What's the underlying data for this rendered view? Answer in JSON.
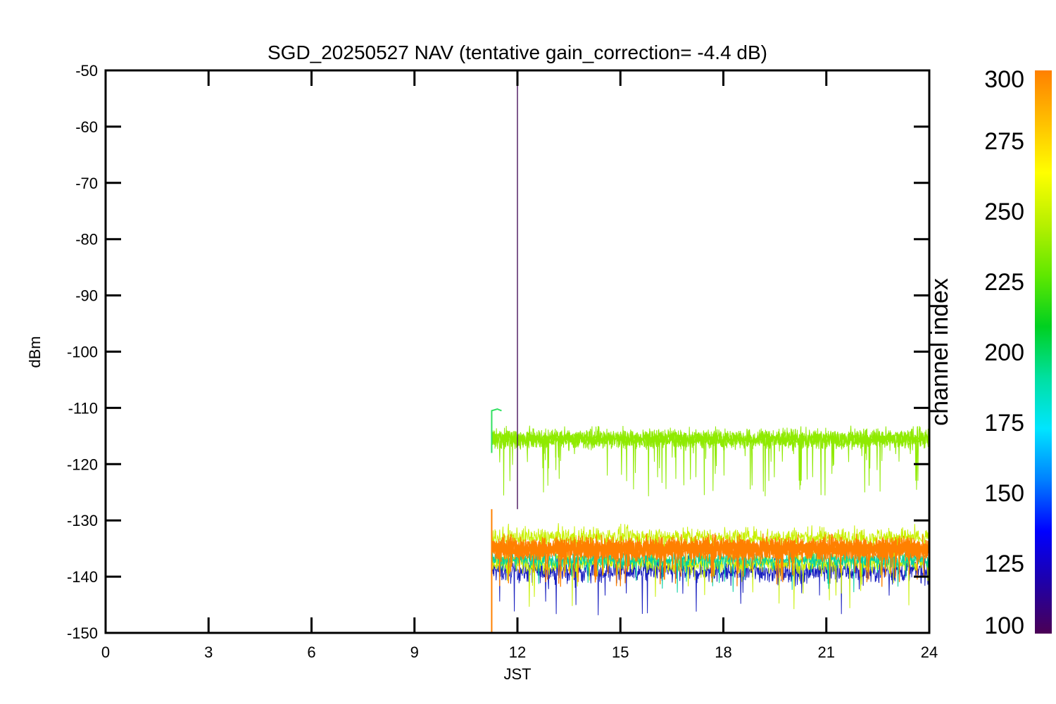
{
  "chart_data": {
    "type": "line",
    "title": "SGD_20250527 NAV (tentative gain_correction= -4.4 dB)",
    "xlabel": "JST",
    "ylabel": "dBm",
    "xlim": [
      0,
      24
    ],
    "ylim": [
      -150,
      -50
    ],
    "x_ticks": [
      "0",
      "3",
      "6",
      "9",
      "12",
      "15",
      "18",
      "21",
      "24"
    ],
    "y_ticks": [
      "-50",
      "-60",
      "-70",
      "-80",
      "-90",
      "-100",
      "-110",
      "-120",
      "-130",
      "-140",
      "-150"
    ],
    "grid": false,
    "colorbar": {
      "label": "channel index",
      "range": [
        100,
        300
      ],
      "ticks": [
        "300",
        "275",
        "250",
        "225",
        "200",
        "175",
        "150",
        "125",
        "100"
      ],
      "colormap": "rainbow",
      "colors": [
        "#4b0055",
        "#1f00a8",
        "#0000ff",
        "#0080ff",
        "#00e5ff",
        "#00e0a0",
        "#00d020",
        "#60e800",
        "#b8f000",
        "#ffff00",
        "#ffbf00",
        "#ff8000"
      ]
    },
    "data_start_x": 11.25,
    "series": [
      {
        "channel_range": [
          240,
          250
        ],
        "color": "#8fea00",
        "mean": -115.5,
        "min": -126,
        "max": -110,
        "description_values": {
          "start_peak": -110.5
        }
      },
      {
        "channel_range": [
          100,
          300
        ],
        "color": "#ff8000",
        "mean": -135,
        "min": -147,
        "max": -126
      }
    ],
    "spike": {
      "x": 12.0,
      "y_min": -128,
      "y_max": -50,
      "color": "#3a0050"
    },
    "annotations_colors": {
      "upper_band": "#8fea00",
      "lower_band_dominant": "#ff8000",
      "lower_band_edge": "#c8f000",
      "dips": "#1a20c0",
      "spike": "#3a0050"
    }
  }
}
